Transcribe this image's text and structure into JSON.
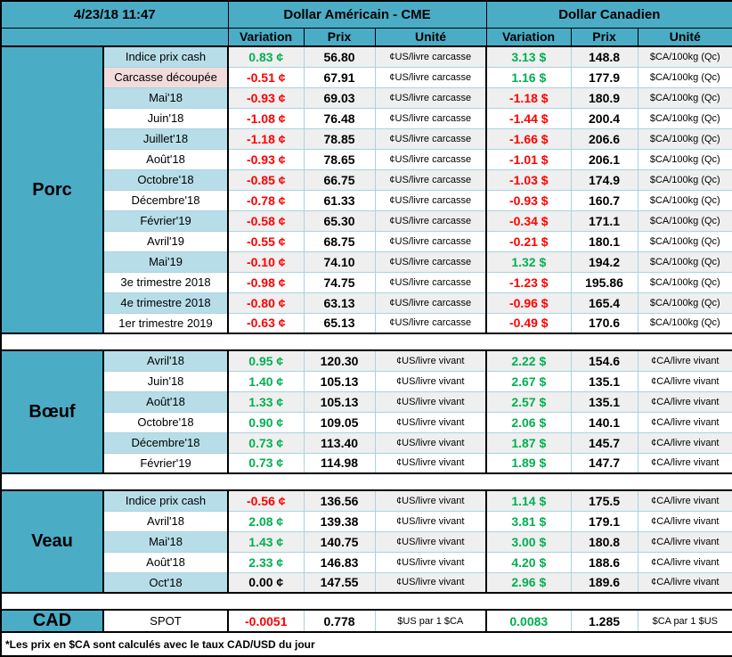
{
  "colors": {
    "teal": "#4BACC6",
    "light_blue": "#B7DEE8",
    "pink": "#F2DCDB",
    "stripe": "#EFEFEF",
    "green": "#00B050",
    "red": "#FF0000",
    "border_light": "#A9D3E0"
  },
  "header": {
    "timestamp": "4/23/18 11:47",
    "usd_title": "Dollar Américain - CME",
    "cad_title": "Dollar Canadien",
    "columns": {
      "variation": "Variation",
      "prix": "Prix",
      "unite": "Unité"
    }
  },
  "sections": [
    {
      "id": "porc",
      "name": "Porc",
      "rows": [
        {
          "label": "Indice prix cash",
          "us_var": "0.83 ¢",
          "us_dir": "up",
          "us_prix": "56.80",
          "us_unit": "¢US/livre carcasse",
          "ca_var": "3.13 $",
          "ca_dir": "up",
          "ca_prix": "148.8",
          "ca_unit": "$CA/100kg (Qc)"
        },
        {
          "label": "Carcasse découpée",
          "pink": true,
          "us_var": "-0.51 ¢",
          "us_dir": "down",
          "us_prix": "67.91",
          "us_unit": "¢US/livre carcasse",
          "ca_var": "1.16 $",
          "ca_dir": "up",
          "ca_prix": "177.9",
          "ca_unit": "$CA/100kg (Qc)"
        },
        {
          "label": "Mai'18",
          "us_var": "-0.93 ¢",
          "us_dir": "down",
          "us_prix": "69.03",
          "us_unit": "¢US/livre carcasse",
          "ca_var": "-1.18 $",
          "ca_dir": "down",
          "ca_prix": "180.9",
          "ca_unit": "$CA/100kg (Qc)"
        },
        {
          "label": "Juin'18",
          "us_var": "-1.08 ¢",
          "us_dir": "down",
          "us_prix": "76.48",
          "us_unit": "¢US/livre carcasse",
          "ca_var": "-1.44 $",
          "ca_dir": "down",
          "ca_prix": "200.4",
          "ca_unit": "$CA/100kg (Qc)"
        },
        {
          "label": "Juillet'18",
          "us_var": "-1.18 ¢",
          "us_dir": "down",
          "us_prix": "78.85",
          "us_unit": "¢US/livre carcasse",
          "ca_var": "-1.66 $",
          "ca_dir": "down",
          "ca_prix": "206.6",
          "ca_unit": "$CA/100kg (Qc)"
        },
        {
          "label": "Août'18",
          "us_var": "-0.93 ¢",
          "us_dir": "down",
          "us_prix": "78.65",
          "us_unit": "¢US/livre carcasse",
          "ca_var": "-1.01 $",
          "ca_dir": "down",
          "ca_prix": "206.1",
          "ca_unit": "$CA/100kg (Qc)"
        },
        {
          "label": "Octobre'18",
          "us_var": "-0.85 ¢",
          "us_dir": "down",
          "us_prix": "66.75",
          "us_unit": "¢US/livre carcasse",
          "ca_var": "-1.03 $",
          "ca_dir": "down",
          "ca_prix": "174.9",
          "ca_unit": "$CA/100kg (Qc)"
        },
        {
          "label": "Décembre'18",
          "us_var": "-0.78 ¢",
          "us_dir": "down",
          "us_prix": "61.33",
          "us_unit": "¢US/livre carcasse",
          "ca_var": "-0.93 $",
          "ca_dir": "down",
          "ca_prix": "160.7",
          "ca_unit": "$CA/100kg (Qc)"
        },
        {
          "label": "Février'19",
          "us_var": "-0.58 ¢",
          "us_dir": "down",
          "us_prix": "65.30",
          "us_unit": "¢US/livre carcasse",
          "ca_var": "-0.34 $",
          "ca_dir": "down",
          "ca_prix": "171.1",
          "ca_unit": "$CA/100kg (Qc)"
        },
        {
          "label": "Avril'19",
          "us_var": "-0.55 ¢",
          "us_dir": "down",
          "us_prix": "68.75",
          "us_unit": "¢US/livre carcasse",
          "ca_var": "-0.21 $",
          "ca_dir": "down",
          "ca_prix": "180.1",
          "ca_unit": "$CA/100kg (Qc)"
        },
        {
          "label": "Mai'19",
          "us_var": "-0.10 ¢",
          "us_dir": "down",
          "us_prix": "74.10",
          "us_unit": "¢US/livre carcasse",
          "ca_var": "1.32 $",
          "ca_dir": "up",
          "ca_prix": "194.2",
          "ca_unit": "$CA/100kg (Qc)"
        },
        {
          "label": "3e trimestre 2018",
          "us_var": "-0.98 ¢",
          "us_dir": "down",
          "us_prix": "74.75",
          "us_unit": "¢US/livre carcasse",
          "ca_var": "-1.23 $",
          "ca_dir": "down",
          "ca_prix": "195.86",
          "ca_unit": "$CA/100kg (Qc)"
        },
        {
          "label": "4e trimestre 2018",
          "us_var": "-0.80 ¢",
          "us_dir": "down",
          "us_prix": "63.13",
          "us_unit": "¢US/livre carcasse",
          "ca_var": "-0.96 $",
          "ca_dir": "down",
          "ca_prix": "165.4",
          "ca_unit": "$CA/100kg (Qc)"
        },
        {
          "label": "1er trimestre 2019",
          "us_var": "-0.63 ¢",
          "us_dir": "down",
          "us_prix": "65.13",
          "us_unit": "¢US/livre carcasse",
          "ca_var": "-0.49 $",
          "ca_dir": "down",
          "ca_prix": "170.6",
          "ca_unit": "$CA/100kg (Qc)"
        }
      ]
    },
    {
      "id": "boeuf",
      "name": "Bœuf",
      "rows": [
        {
          "label": "Avril'18",
          "us_var": "0.95 ¢",
          "us_dir": "up",
          "us_prix": "120.30",
          "us_unit": "¢US/livre vivant",
          "ca_var": "2.22 $",
          "ca_dir": "up",
          "ca_prix": "154.6",
          "ca_unit": "¢CA/livre vivant"
        },
        {
          "label": "Juin'18",
          "us_var": "1.40 ¢",
          "us_dir": "up",
          "us_prix": "105.13",
          "us_unit": "¢US/livre vivant",
          "ca_var": "2.67 $",
          "ca_dir": "up",
          "ca_prix": "135.1",
          "ca_unit": "¢CA/livre vivant"
        },
        {
          "label": "Août'18",
          "us_var": "1.33 ¢",
          "us_dir": "up",
          "us_prix": "105.13",
          "us_unit": "¢US/livre vivant",
          "ca_var": "2.57 $",
          "ca_dir": "up",
          "ca_prix": "135.1",
          "ca_unit": "¢CA/livre vivant"
        },
        {
          "label": "Octobre'18",
          "us_var": "0.90 ¢",
          "us_dir": "up",
          "us_prix": "109.05",
          "us_unit": "¢US/livre vivant",
          "ca_var": "2.06 $",
          "ca_dir": "up",
          "ca_prix": "140.1",
          "ca_unit": "¢CA/livre vivant"
        },
        {
          "label": "Décembre'18",
          "us_var": "0.73 ¢",
          "us_dir": "up",
          "us_prix": "113.40",
          "us_unit": "¢US/livre vivant",
          "ca_var": "1.87 $",
          "ca_dir": "up",
          "ca_prix": "145.7",
          "ca_unit": "¢CA/livre vivant"
        },
        {
          "label": "Février'19",
          "us_var": "0.73 ¢",
          "us_dir": "up",
          "us_prix": "114.98",
          "us_unit": "¢US/livre vivant",
          "ca_var": "1.89 $",
          "ca_dir": "up",
          "ca_prix": "147.7",
          "ca_unit": "¢CA/livre vivant"
        }
      ]
    },
    {
      "id": "veau",
      "name": "Veau",
      "rows": [
        {
          "label": "Indice prix cash",
          "us_var": "-0.56 ¢",
          "us_dir": "down",
          "us_prix": "136.56",
          "us_unit": "¢US/livre vivant",
          "ca_var": "1.14 $",
          "ca_dir": "up",
          "ca_prix": "175.5",
          "ca_unit": "¢CA/livre vivant"
        },
        {
          "label": "Avril'18",
          "us_var": "2.08 ¢",
          "us_dir": "up",
          "us_prix": "139.38",
          "us_unit": "¢US/livre vivant",
          "ca_var": "3.81 $",
          "ca_dir": "up",
          "ca_prix": "179.1",
          "ca_unit": "¢CA/livre vivant"
        },
        {
          "label": "Mai'18",
          "us_var": "1.43 ¢",
          "us_dir": "up",
          "us_prix": "140.75",
          "us_unit": "¢US/livre vivant",
          "ca_var": "3.00 $",
          "ca_dir": "up",
          "ca_prix": "180.8",
          "ca_unit": "¢CA/livre vivant"
        },
        {
          "label": "Août'18",
          "us_var": "2.33 ¢",
          "us_dir": "up",
          "us_prix": "146.83",
          "us_unit": "¢US/livre vivant",
          "ca_var": "4.20 $",
          "ca_dir": "up",
          "ca_prix": "188.6",
          "ca_unit": "¢CA/livre vivant"
        },
        {
          "label": "Oct'18",
          "us_var": "0.00 ¢",
          "us_dir": "flat",
          "us_prix": "147.55",
          "us_unit": "¢US/livre vivant",
          "ca_var": "2.96 $",
          "ca_dir": "up",
          "ca_prix": "189.6",
          "ca_unit": "¢CA/livre vivant"
        }
      ]
    },
    {
      "id": "cad",
      "name": "CAD",
      "striped": false,
      "rows": [
        {
          "label": "SPOT",
          "us_var": "-0.0051",
          "us_dir": "down",
          "us_prix": "0.778",
          "us_unit": "$US par 1 $CA",
          "ca_var": "0.0083",
          "ca_dir": "up",
          "ca_prix": "1.285",
          "ca_unit": "$CA par 1 $US"
        }
      ]
    }
  ],
  "footer": {
    "note": "*Les  prix en $CA sont calculés avec le taux CAD/USD du jour"
  }
}
